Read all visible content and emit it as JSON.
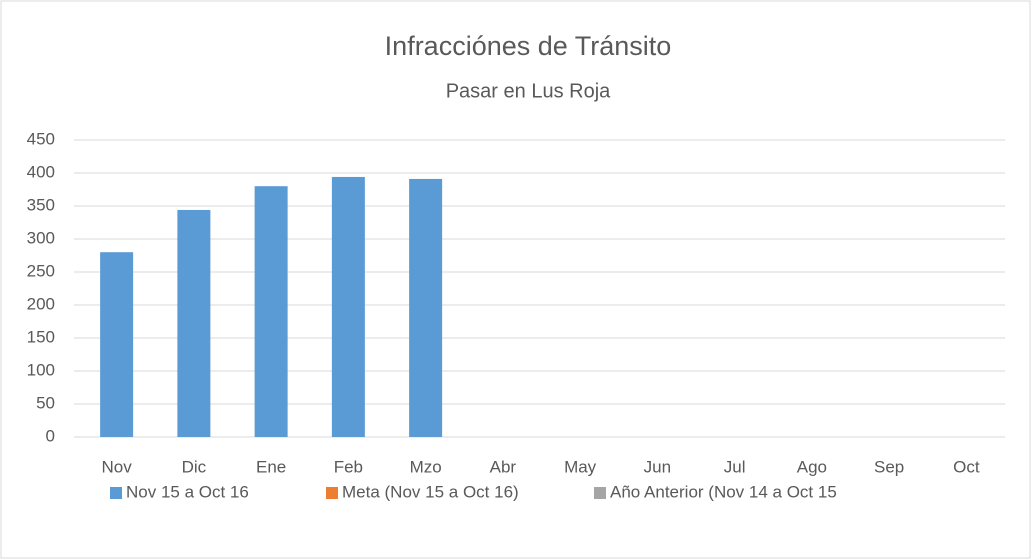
{
  "chart_data": {
    "type": "bar",
    "title": "Infracciónes de Tránsito",
    "subtitle": "Pasar en Lus Roja",
    "categories": [
      "Nov",
      "Dic",
      "Ene",
      "Feb",
      "Mzo",
      "Abr",
      "May",
      "Jun",
      "Jul",
      "Ago",
      "Sep",
      "Oct"
    ],
    "series": [
      {
        "name": "Nov 15 a Oct 16",
        "color": "#5b9bd5",
        "values": [
          280,
          344,
          380,
          394,
          391,
          null,
          null,
          null,
          null,
          null,
          null,
          null
        ]
      },
      {
        "name": "Meta (Nov 15 a Oct 16)",
        "color": "#ed7d31",
        "values": [
          null,
          null,
          null,
          null,
          null,
          null,
          null,
          null,
          null,
          null,
          null,
          null
        ]
      },
      {
        "name": "Año Anterior (Nov 14 a Oct 15",
        "color": "#a5a5a5",
        "values": [
          null,
          null,
          null,
          null,
          null,
          null,
          null,
          null,
          null,
          null,
          null,
          null
        ]
      }
    ],
    "ylim": [
      0,
      450
    ],
    "yticks": [
      0,
      50,
      100,
      150,
      200,
      250,
      300,
      350,
      400,
      450
    ],
    "grid": true,
    "legend": "bottom"
  }
}
